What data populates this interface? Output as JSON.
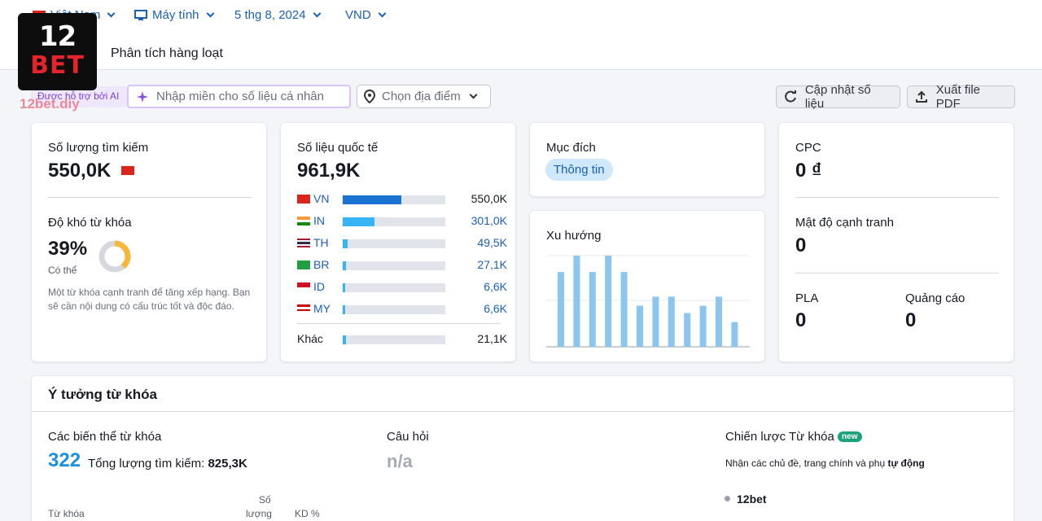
{
  "filters": {
    "country": "Việt Nam",
    "device": "Máy tính",
    "date": "5 thg 8, 2024",
    "currency": "VND"
  },
  "tab": {
    "label": "Phân tích hàng loạt"
  },
  "logo": {
    "line1": "12",
    "line2": "BET",
    "watermark": "12bet.diy"
  },
  "ai": {
    "label": "Được hỗ trợ bởi AI",
    "input_placeholder": "Nhập miền cho số liệu cá nhân",
    "location_placeholder": "Chọn địa điểm"
  },
  "actions": {
    "refresh": "Cập nhật số liệu",
    "export": "Xuất file PDF"
  },
  "volume_card": {
    "title": "Số lượng tìm kiếm",
    "value": "550,0K",
    "kd_title": "Độ khó từ khóa",
    "kd_value": "39%",
    "kd_fraction": 0.39,
    "kd_level": "Có thể",
    "kd_description": "Một từ khóa cạnh tranh để tăng xếp hạng. Bạn sẽ cần nội dung có cấu trúc tốt và độc đáo."
  },
  "global_card": {
    "title": "Số liệu quốc tế",
    "value": "961,9K",
    "countries": [
      {
        "code": "VN",
        "value": "550,0K",
        "share": 0.57,
        "color": "#1a73d1"
      },
      {
        "code": "IN",
        "value": "301,0K",
        "share": 0.31,
        "color": "#36b4f5"
      },
      {
        "code": "TH",
        "value": "49,5K",
        "share": 0.05,
        "color": "#36b4f5"
      },
      {
        "code": "BR",
        "value": "27,1K",
        "share": 0.03,
        "color": "#36b4f5"
      },
      {
        "code": "ID",
        "value": "6,6K",
        "share": 0.02,
        "color": "#36b4f5"
      },
      {
        "code": "MY",
        "value": "6,6K",
        "share": 0.02,
        "color": "#36b4f5"
      }
    ],
    "other": {
      "label": "Khác",
      "value": "21,1K",
      "share": 0.03,
      "color": "#36b4f5"
    }
  },
  "intent_card": {
    "title": "Mục đích",
    "badge": "Thông tin"
  },
  "trend_card": {
    "title": "Xu hướng",
    "bars": [
      0.82,
      1.0,
      0.82,
      1.0,
      0.82,
      0.45,
      0.55,
      0.55,
      0.37,
      0.45,
      0.55,
      0.27
    ],
    "color": "#8ac6f0"
  },
  "cpc_card": {
    "cpc_label": "CPC",
    "cpc_value": "0 ₫",
    "density_label": "Mật độ cạnh tranh",
    "density_value": "0",
    "pla_label": "PLA",
    "pla_value": "0",
    "ads_label": "Quảng cáo",
    "ads_value": "0"
  },
  "ideas": {
    "title": "Ý tưởng từ khóa",
    "variants_label": "Các biến thể từ khóa",
    "variants_count": "322",
    "total_label": "Tổng lượng tìm kiếm:",
    "total_value": "825,3K",
    "questions_label": "Câu hỏi",
    "questions_value": "n/a",
    "strategy_label": "Chiến lược Từ khóa",
    "strategy_badge": "new",
    "strategy_desc_prefix": "Nhận các chủ đề, trang chính và phụ ",
    "strategy_desc_bold": "tự động",
    "strategy_item": "12bet",
    "col_keyword": "Từ khóa",
    "col_volume_1": "Số",
    "col_volume_2": "lượng",
    "col_kd": "KD %"
  }
}
